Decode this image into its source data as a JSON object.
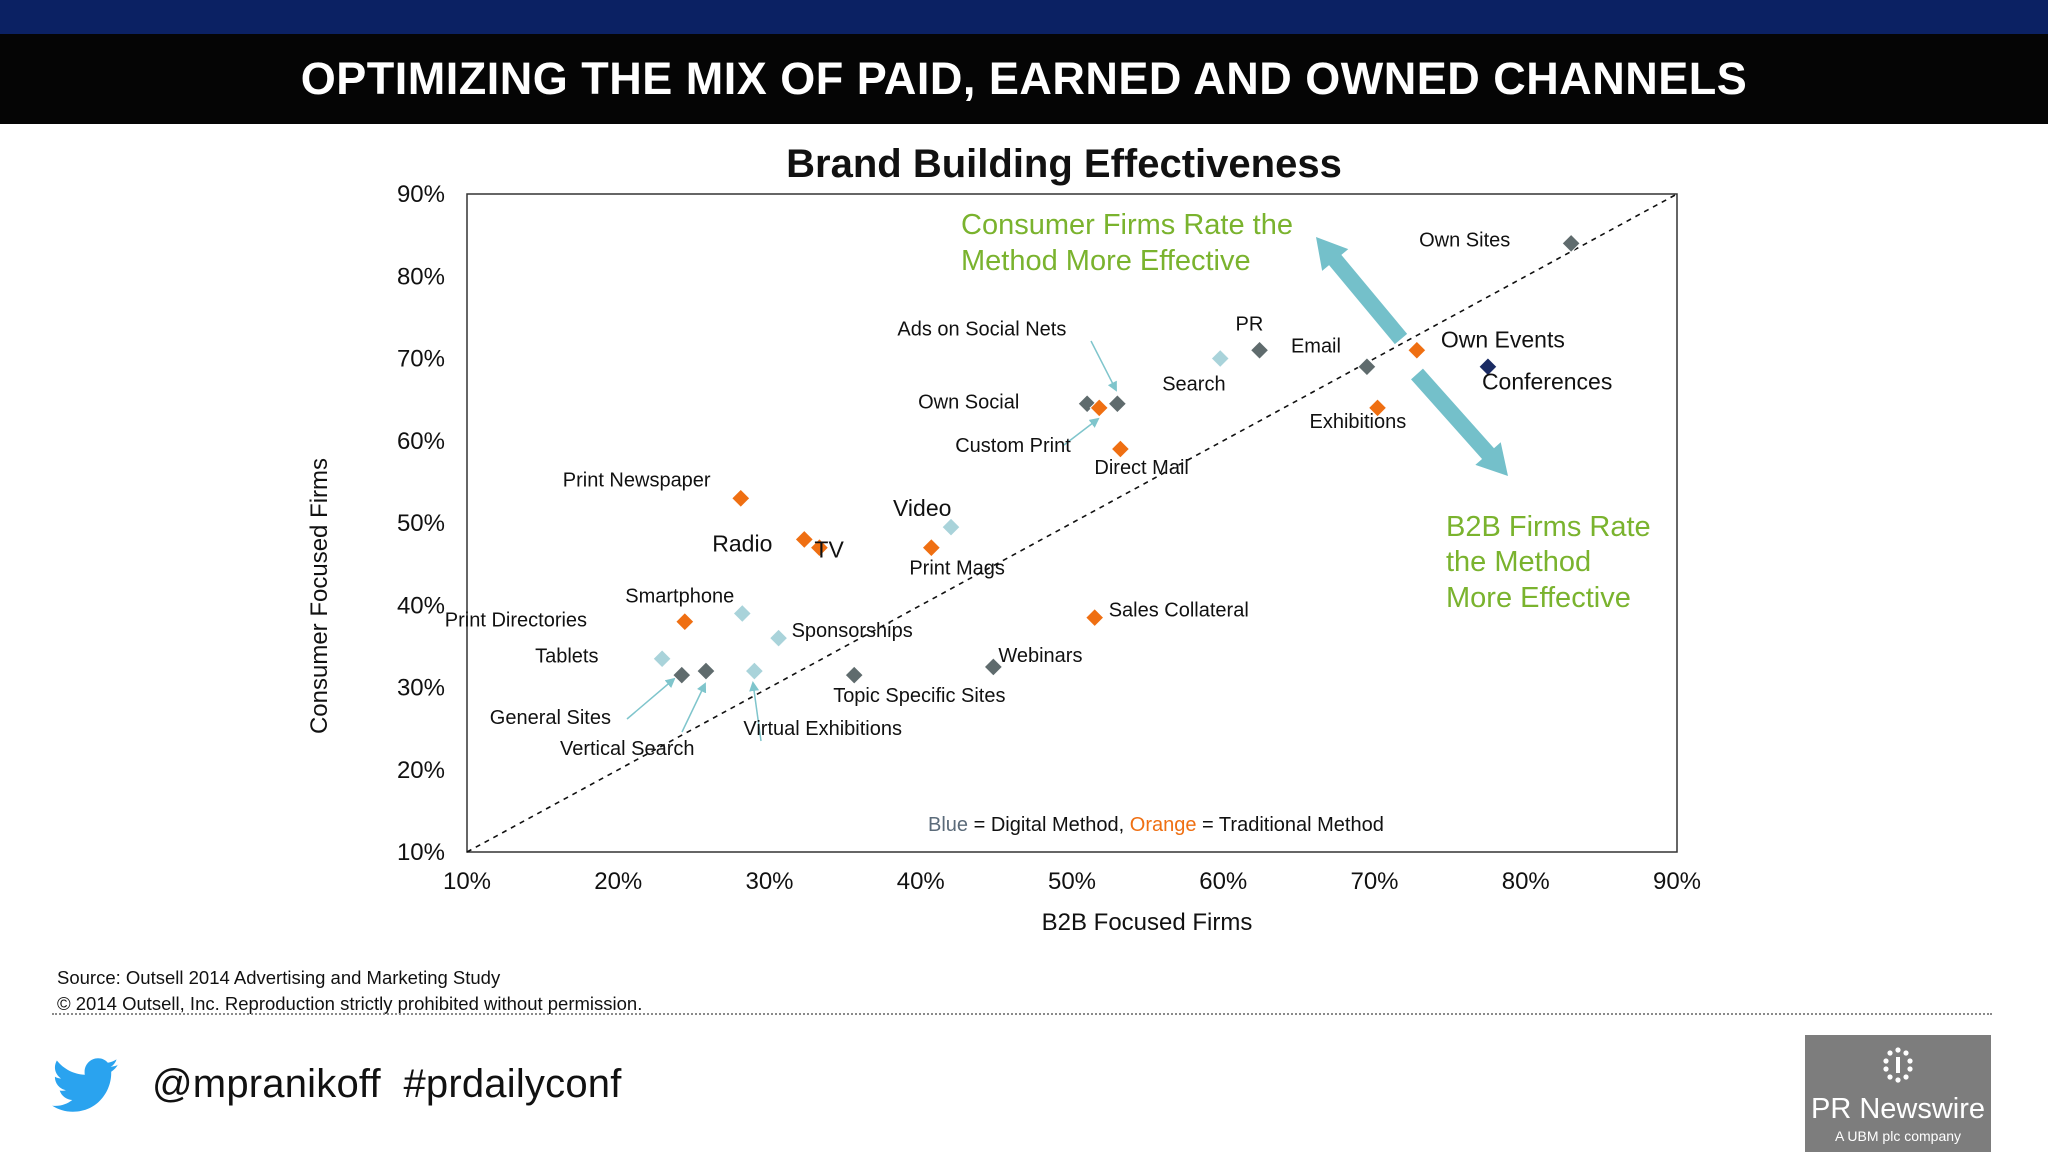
{
  "slide_title": "OPTIMIZING THE MIX OF PAID, EARNED AND OWNED CHANNELS",
  "colors": {
    "top_bar": "#0b2163",
    "title_bar": "#050505",
    "digital_point": "#a9d3da",
    "digital_dark": "#5f6b6d",
    "traditional_point": "#ef6f12",
    "conferences_point": "#1a2b63",
    "callout_green": "#7ab32e",
    "arrow": "#74c0ca"
  },
  "chart_data": {
    "type": "scatter",
    "title": "Brand Building Effectiveness",
    "xlabel": "B2B Focused Firms",
    "ylabel": "Consumer Focused Firms",
    "xlim": [
      10,
      90
    ],
    "ylim": [
      10,
      90
    ],
    "xticks": [
      "10%",
      "20%",
      "30%",
      "40%",
      "50%",
      "60%",
      "70%",
      "80%",
      "90%"
    ],
    "yticks": [
      "10%",
      "20%",
      "30%",
      "40%",
      "50%",
      "60%",
      "70%",
      "80%",
      "90%"
    ],
    "diagonal": "dashed y = x",
    "points": [
      {
        "label": "Own Sites",
        "x": 83,
        "y": 84,
        "style": "digital-dark"
      },
      {
        "label": "Own Events",
        "x": 72.8,
        "y": 71,
        "style": "traditional"
      },
      {
        "label": "Conferences",
        "x": 77.5,
        "y": 69,
        "style": "conferences"
      },
      {
        "label": "Email",
        "x": 69.5,
        "y": 69,
        "style": "digital-dark"
      },
      {
        "label": "Exhibitions",
        "x": 70.2,
        "y": 64,
        "style": "traditional"
      },
      {
        "label": "PR",
        "x": 62.4,
        "y": 71,
        "style": "digital-dark"
      },
      {
        "label": "Search",
        "x": 59.8,
        "y": 70,
        "style": "digital"
      },
      {
        "label": "Ads on Social Nets",
        "x": 53,
        "y": 64.5,
        "style": "digital-dark"
      },
      {
        "label": "Own Social",
        "x": 51,
        "y": 64.5,
        "style": "digital-dark"
      },
      {
        "label": "Custom Print",
        "x": 51.8,
        "y": 64,
        "style": "traditional"
      },
      {
        "label": "Direct Mail",
        "x": 53.2,
        "y": 59,
        "style": "traditional"
      },
      {
        "label": "Print Newspaper",
        "x": 28.1,
        "y": 53,
        "style": "traditional"
      },
      {
        "label": "Video",
        "x": 42,
        "y": 49.5,
        "style": "digital"
      },
      {
        "label": "Radio",
        "x": 32.3,
        "y": 48,
        "style": "traditional"
      },
      {
        "label": "TV",
        "x": 33.3,
        "y": 47,
        "style": "traditional"
      },
      {
        "label": "Print Mags",
        "x": 40.7,
        "y": 47,
        "style": "traditional"
      },
      {
        "label": "Smartphone",
        "x": 28.2,
        "y": 39,
        "style": "digital"
      },
      {
        "label": "Print Directories",
        "x": 24.4,
        "y": 38,
        "style": "traditional"
      },
      {
        "label": "Sponsorships",
        "x": 30.6,
        "y": 36,
        "style": "digital"
      },
      {
        "label": "Sales Collateral",
        "x": 51.5,
        "y": 38.5,
        "style": "traditional"
      },
      {
        "label": "Tablets",
        "x": 22.9,
        "y": 33.5,
        "style": "digital"
      },
      {
        "label": "General Sites",
        "x": 24.2,
        "y": 31.5,
        "style": "digital-dark"
      },
      {
        "label": "Vertical Search",
        "x": 25.8,
        "y": 32,
        "style": "digital-dark"
      },
      {
        "label": "Virtual Exhibitions",
        "x": 29,
        "y": 32,
        "style": "digital"
      },
      {
        "label": "Topic Specific Sites",
        "x": 35.6,
        "y": 31.5,
        "style": "digital-dark"
      },
      {
        "label": "Webinars",
        "x": 44.8,
        "y": 32.5,
        "style": "digital-dark"
      }
    ],
    "annotations": {
      "consumer_line1": "Consumer Firms Rate the",
      "consumer_line2": "Method More Effective",
      "b2b_line1": "B2B Firms Rate",
      "b2b_line2": "the Method",
      "b2b_line3": "More Effective"
    },
    "legend": {
      "blue_word": "Blue",
      "blue_text": " = Digital Method, ",
      "orange_word": "Orange",
      "orange_text": " = Traditional Method"
    }
  },
  "footer": {
    "source_line1": "Source: Outsell 2014 Advertising and Marketing Study",
    "source_line2": "© 2014 Outsell, Inc. Reproduction strictly prohibited without permission.",
    "handle": "@mpranikoff  #prdailyconf",
    "twitter_icon": "twitter-bird-icon",
    "logo_name": "PR Newswire",
    "logo_sub": "A UBM plc company"
  }
}
